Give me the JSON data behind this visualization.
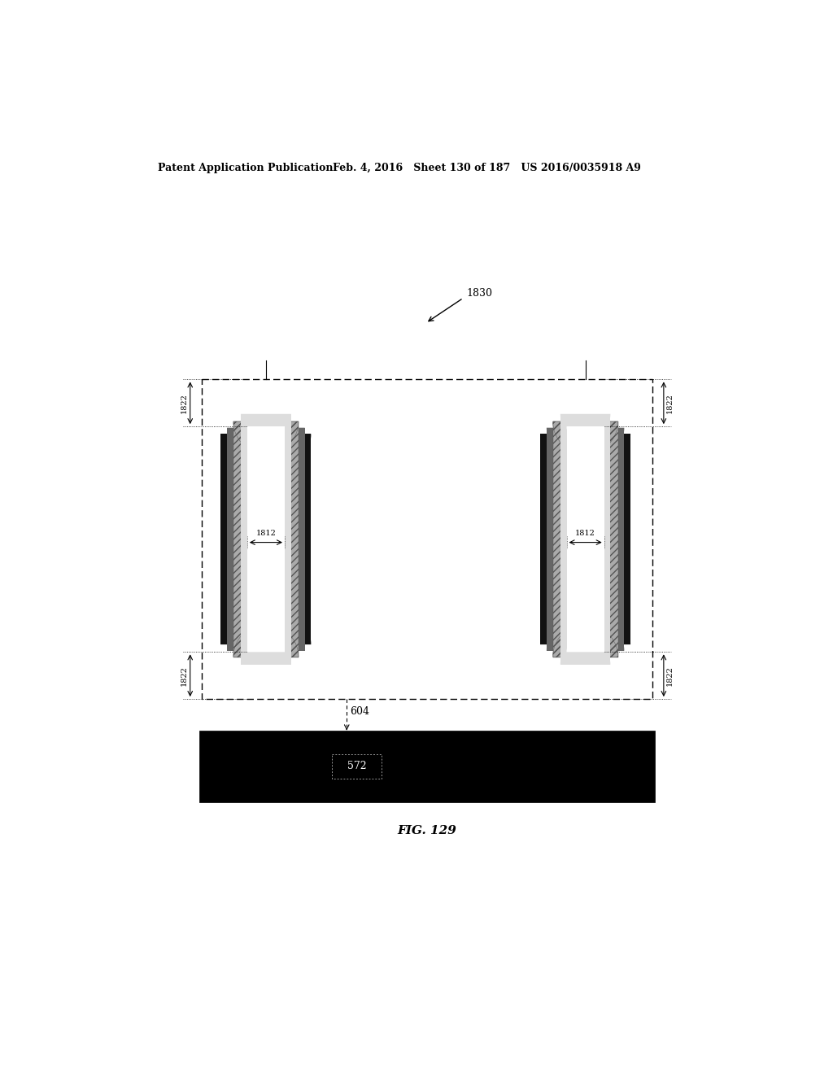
{
  "title_left": "Patent Application Publication",
  "title_mid": "Feb. 4, 2016   Sheet 130 of 187   US 2016/0035918 A9",
  "fig_label": "FIG. 129",
  "label_1830": "1830",
  "label_1822": "1822",
  "label_1812": "1812",
  "label_604": "604",
  "label_572": "572",
  "bg_color": "#ffffff",
  "black": "#000000",
  "dark_gray": "#333333",
  "mid_gray": "#888888",
  "light_gray": "#cccccc"
}
